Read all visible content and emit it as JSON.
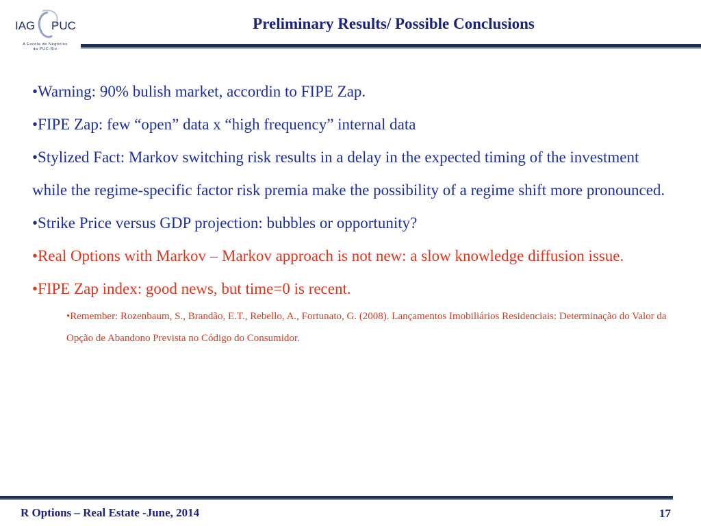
{
  "header": {
    "logo_text_left": "IAG",
    "logo_text_right": "PUC",
    "logo_subtitle": "A Escola de Negócios\nda PUC-Rio",
    "title": "Preliminary Results/ Possible Conclusions"
  },
  "content": {
    "items": [
      {
        "text": "•Warning: 90% bulish market, accordin to FIPE Zap.",
        "color": "#1c2f9b"
      },
      {
        "text": "•FIPE Zap: few “open” data x “high frequency” internal data",
        "color": "#1c2f9b"
      },
      {
        "text": "•Stylized Fact: Markov switching risk results in a delay in the expected timing of the investment while the regime-specific factor risk premia make the possibility of a regime shift more pronounced.",
        "color": "#1c2f9b"
      },
      {
        "text": "•Strike Price versus GDP projection: bubbles or opportunity?",
        "color": "#1c2f9b"
      },
      {
        "text": "•Real Options with Markov – Markov approach is not new: a slow knowledge diffusion issue.",
        "color": "#e0361b"
      },
      {
        "text": "•FIPE Zap index: good news, but time=0 is recent.",
        "color": "#e0361b"
      },
      {
        "text": "•Remember:  Rozenbaum, S., Brandão, E.T., Rebello, A., Fortunato, G. (2008). Lançamentos Imobiliários Residenciais: Determinação do Valor da Opção de Abandono Prevista no Código do Consumidor.",
        "color": "#d8381d"
      }
    ]
  },
  "footer": {
    "left": "R Options – Real Estate -June, 2014",
    "page_number": "17"
  },
  "colors": {
    "title": "#1a237e",
    "body_blue": "#1c2f9b",
    "body_red": "#e0361b",
    "rule": "#1c2e4a"
  }
}
